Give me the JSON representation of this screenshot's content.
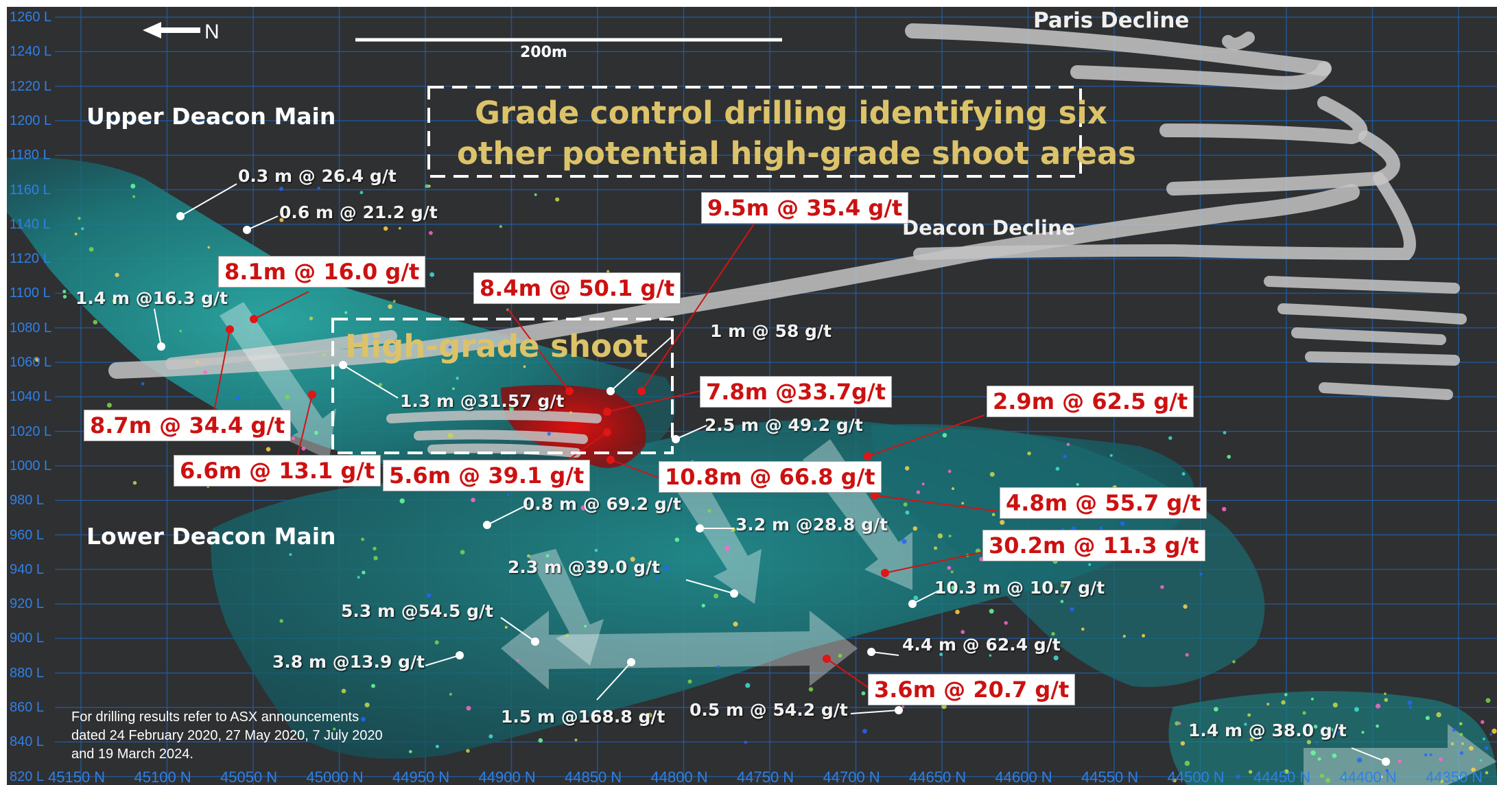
{
  "scale_bar": {
    "label": "200m"
  },
  "north_arrow": {
    "label": "N",
    "icon": "arrow-left-icon"
  },
  "elevation_labels": [
    "1260 L",
    "1240 L",
    "1220 L",
    "1200 L",
    "1180 L",
    "1160 L",
    "1140 L",
    "1120 L",
    "1100 L",
    "1080 L",
    "1060 L",
    "1040 L",
    "1020 L",
    "1000 L",
    "980 L",
    "960 L",
    "940 L",
    "920 L",
    "900 L",
    "880 L",
    "860 L",
    "840 L",
    "820 L"
  ],
  "northing_labels": [
    "45150 N",
    "45100 N",
    "45050 N",
    "45000 N",
    "44950 N",
    "44900 N",
    "44850 N",
    "44800 N",
    "44750 N",
    "44700 N",
    "44650 N",
    "44600 N",
    "44550 N",
    "44500 N",
    "44450 N",
    "44400 N",
    "44350 N"
  ],
  "zones": {
    "upper": "Upper Deacon Main",
    "lower": "Lower Deacon Main"
  },
  "declines": {
    "paris": "Paris Decline",
    "deacon": "Deacon Decline"
  },
  "callout": {
    "line1": "Grade control drilling identifying six",
    "line2": "other potential high-grade shoot areas"
  },
  "shoot_label": "High-grade shoot",
  "intercepts_white": [
    "0.3 m @ 26.4 g/t",
    "0.6 m @ 21.2 g/t",
    "1.4 m @16.3 g/t",
    "1 m @ 58 g/t",
    "1.3 m @31.57 g/t",
    "2.5 m @ 49.2 g/t",
    "0.8 m @ 69.2 g/t",
    "3.2 m @28.8 g/t",
    "2.3 m @39.0 g/t",
    "10.3 m @ 10.7 g/t",
    "5.3 m @54.5 g/t",
    "3.8 m @13.9 g/t",
    "4.4 m @ 62.4 g/t",
    "1.5 m @168.8 g/t",
    "0.5 m @ 54.2 g/t",
    "1.4 m @ 38.0 g/t"
  ],
  "intercepts_red": [
    "9.5m @ 35.4 g/t",
    "8.1m @ 16.0 g/t",
    "8.4m @ 50.1 g/t",
    "7.8m @33.7g/t",
    "2.9m @ 62.5 g/t",
    "8.7m @ 34.4 g/t",
    "6.6m @ 13.1 g/t",
    "5.6m @ 39.1 g/t",
    "10.8m @ 66.8 g/t",
    "4.8m @ 55.7 g/t",
    "30.2m @ 11.3 g/t",
    "3.6m @ 20.7 g/t"
  ],
  "note": "For drilling results refer to ASX announcements dated 24 February 2020, 27 May 2020, 7 July 2020 and 19 March 2024.",
  "colors": {
    "background": "#2f3032",
    "grid": "#1f5fa8",
    "orebody": "#1e8c8c",
    "highgrade": "#cc1111",
    "callout_text": "#dcc36a",
    "tunnel": "#c8c8c8"
  }
}
